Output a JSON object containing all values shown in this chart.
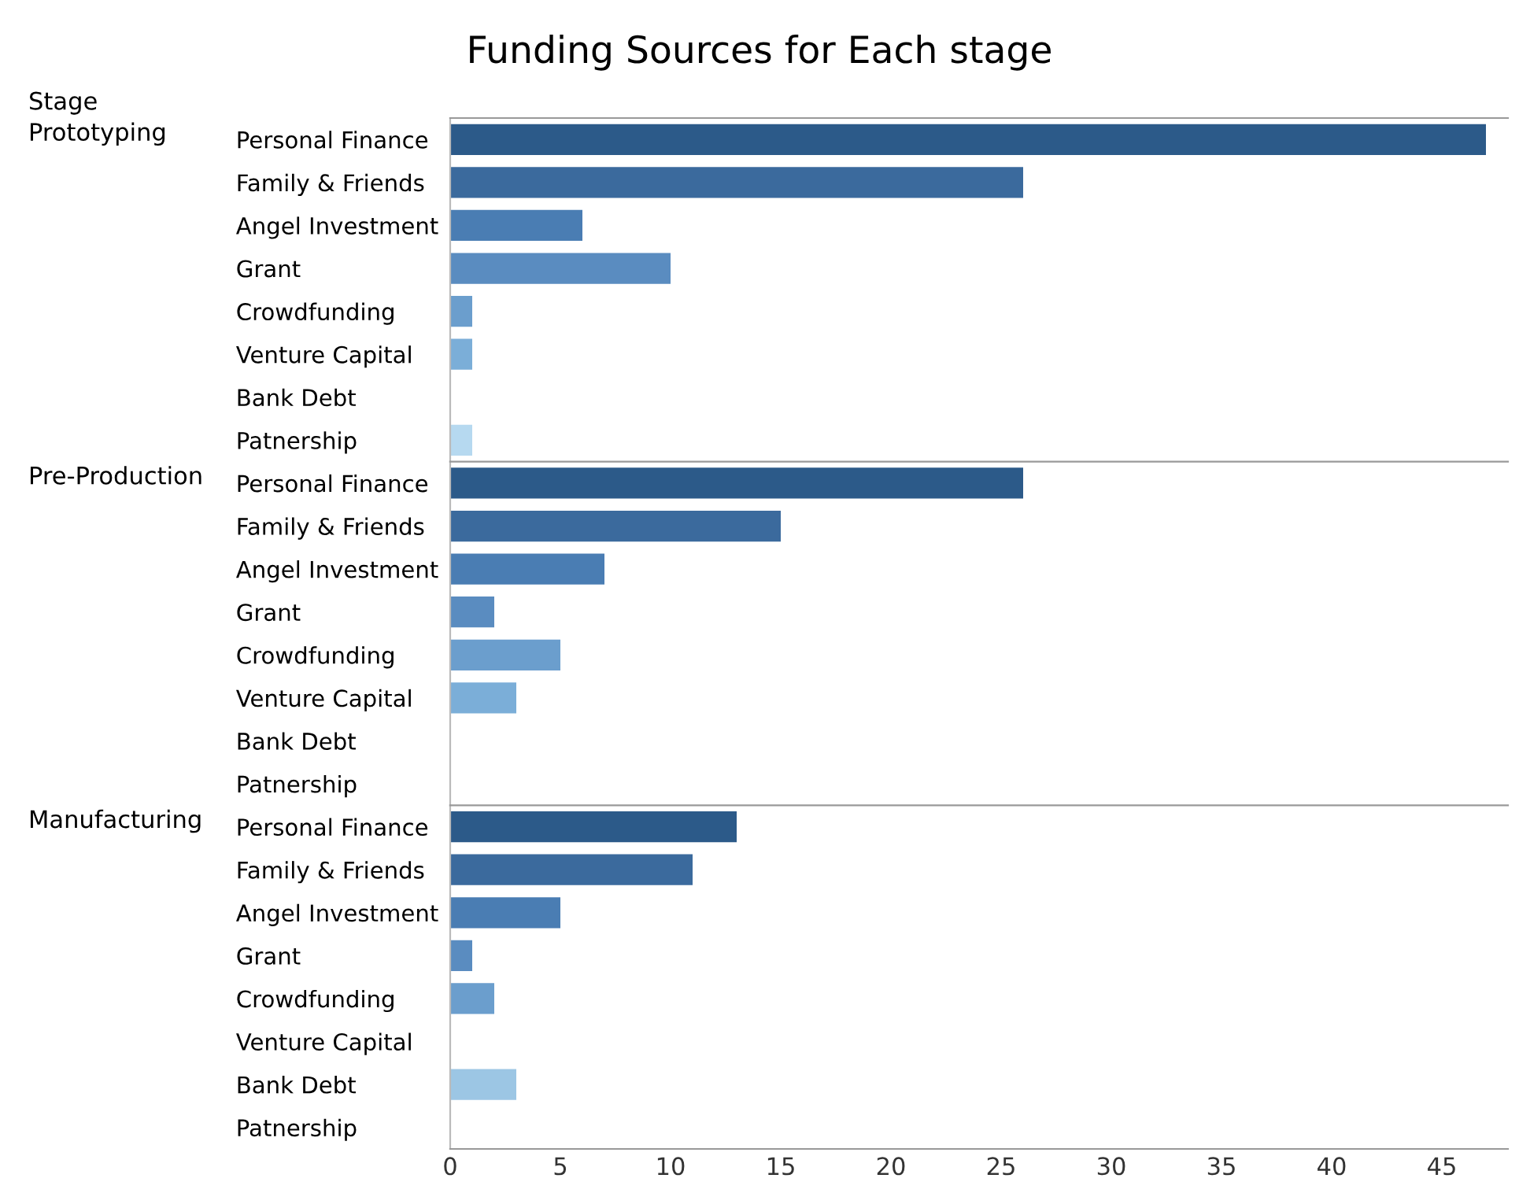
{
  "chart_data": [
    {
      "type": "bar",
      "orientation": "horizontal",
      "title": "Funding Sources for Each stage",
      "annotations": [
        "Stage"
      ],
      "ylabel": "Prototyping",
      "tick_labels": "y",
      "categories": [
        "Personal Finance",
        "Family & Friends",
        "Angel Investment",
        "Grant",
        "Crowdfunding",
        "Venture Capital",
        "Bank Debt",
        "Patnership"
      ],
      "values": [
        47,
        26,
        6,
        10,
        1,
        1,
        0,
        1
      ],
      "colors": [
        "#2c5a89",
        "#3b6a9d",
        "#4a7db3",
        "#5a8cc0",
        "#6b9ecd",
        "#7baed8",
        "#9cc6e4",
        "#b6d9f0"
      ],
      "xlim": [
        0,
        48
      ],
      "xticks": [
        0,
        5,
        10,
        15,
        20,
        25,
        30,
        35,
        40,
        45
      ]
    },
    {
      "type": "bar",
      "orientation": "horizontal",
      "ylabel": "Pre-Production",
      "tick_labels": "y",
      "categories": [
        "Personal Finance",
        "Family & Friends",
        "Angel Investment",
        "Grant",
        "Crowdfunding",
        "Venture Capital",
        "Bank Debt",
        "Patnership"
      ],
      "values": [
        26,
        15,
        7,
        2,
        5,
        3,
        0,
        0
      ],
      "colors": [
        "#2c5a89",
        "#3b6a9d",
        "#4a7db3",
        "#5a8cc0",
        "#6b9ecd",
        "#7baed8",
        "#9cc6e4",
        "#b6d9f0"
      ],
      "xlim": [
        0,
        48
      ],
      "xticks": [
        0,
        5,
        10,
        15,
        20,
        25,
        30,
        35,
        40,
        45
      ]
    },
    {
      "type": "bar",
      "orientation": "horizontal",
      "ylabel": "Manufacturing",
      "categories": [
        "Personal Finance",
        "Family & Friends",
        "Angel Investment",
        "Grant",
        "Crowdfunding",
        "Venture Capital",
        "Bank Debt",
        "Patnership"
      ],
      "values": [
        13,
        11,
        5,
        1,
        2,
        0,
        3,
        0
      ],
      "colors": [
        "#2c5a89",
        "#3b6a9d",
        "#4a7db3",
        "#5a8cc0",
        "#6b9ecd",
        "#7baed8",
        "#9cc6e4",
        "#b6d9f0"
      ],
      "xlim": [
        0,
        48
      ],
      "xticks": [
        0,
        5,
        10,
        15,
        20,
        25,
        30,
        35,
        40,
        45
      ]
    }
  ]
}
